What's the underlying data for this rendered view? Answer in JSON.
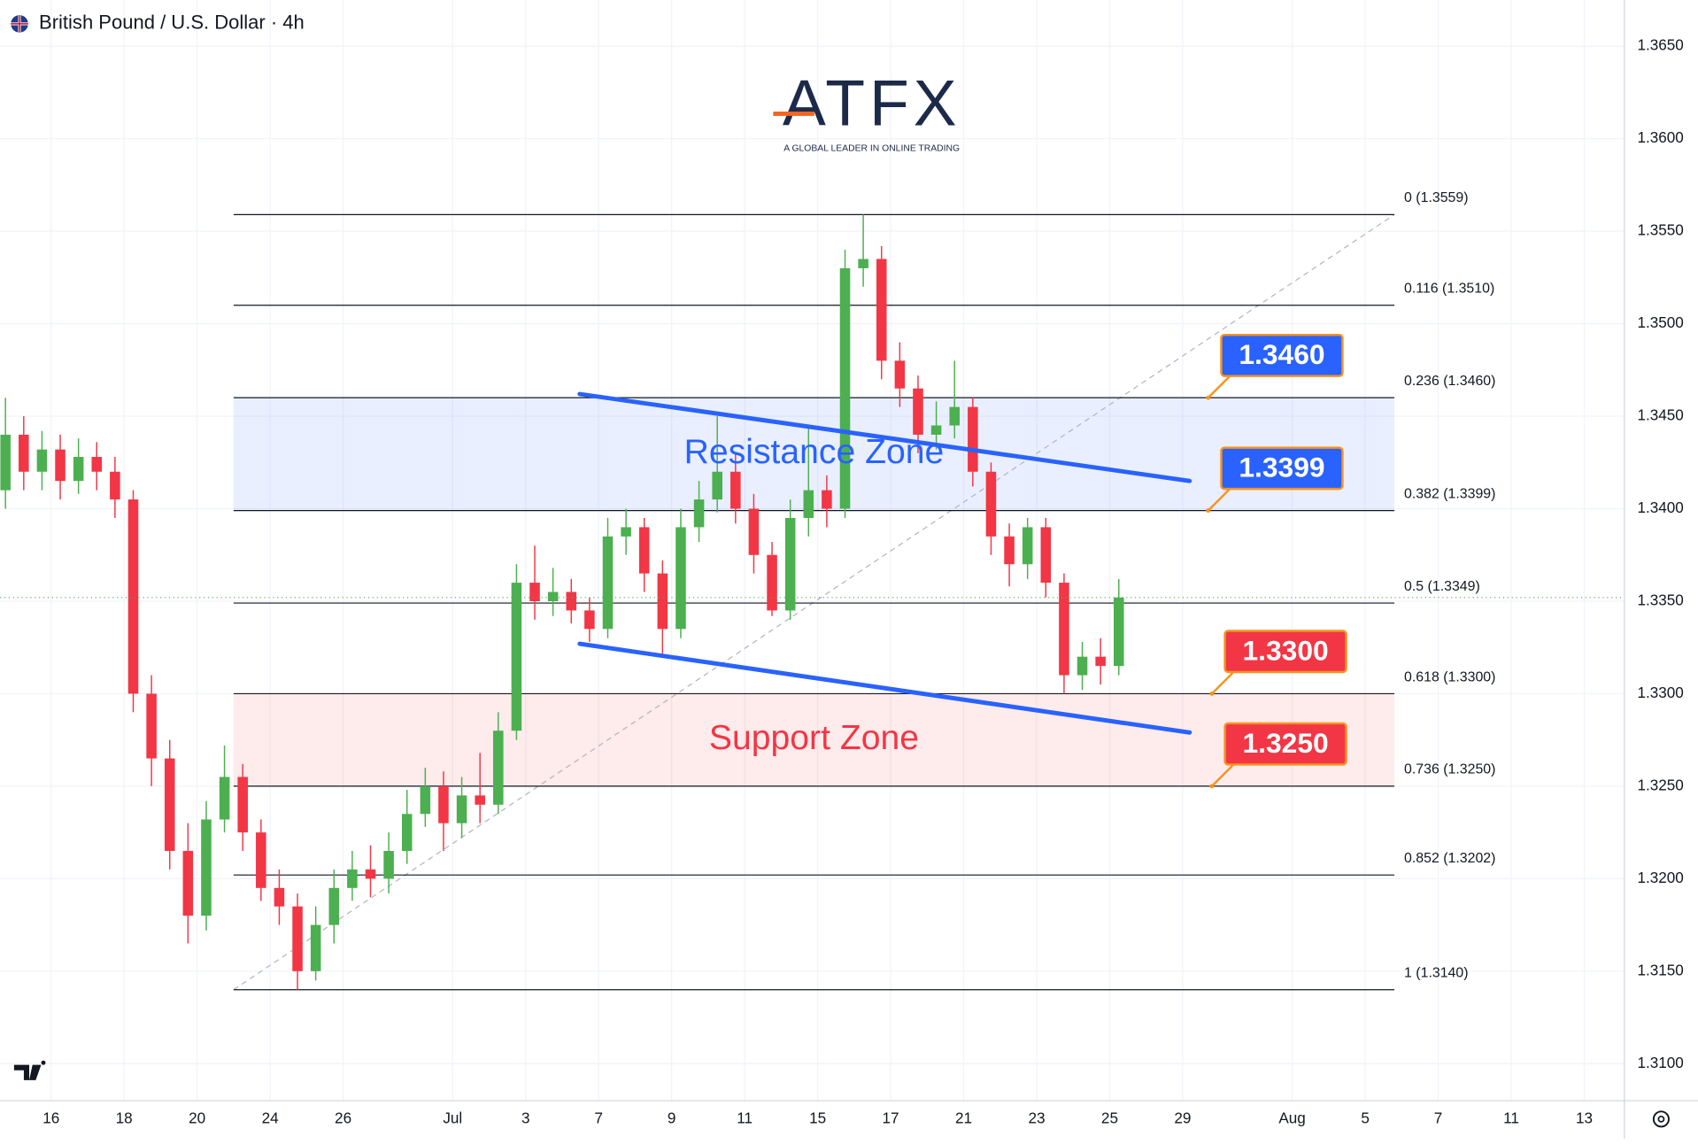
{
  "chart_data": {
    "type": "candlestick",
    "title": "British Pound / U.S. Dollar · 4h",
    "logo": {
      "name": "ATFX",
      "tagline": "A GLOBAL LEADER IN ONLINE TRADING"
    },
    "up_color": "#4caf50",
    "down_color": "#f23645",
    "x": [
      -1.25,
      -0.75,
      -0.25,
      0.25,
      0.75,
      1.25,
      1.75,
      2.25,
      2.75,
      3.25,
      3.75,
      4.25,
      4.75,
      5.25,
      5.75,
      6.25,
      6.75,
      7.25,
      7.75,
      8.25,
      8.75,
      9.25,
      9.75,
      10.25,
      10.75,
      11.25,
      11.75,
      12.25,
      12.75,
      13.25,
      13.75,
      14.25,
      14.75,
      15.25,
      15.75,
      16.25,
      16.75,
      17.25,
      17.75,
      18.25,
      18.75,
      19.25,
      19.75,
      20.25,
      20.75,
      21.25,
      21.75,
      22.25,
      22.75,
      23.25,
      23.75,
      24.25,
      24.75,
      25.25,
      25.75,
      26.25,
      26.75,
      27.25,
      27.75,
      28.25,
      28.75,
      29.25
    ],
    "open": [
      1.341,
      1.344,
      1.342,
      1.3432,
      1.3415,
      1.3428,
      1.342,
      1.3405,
      1.33,
      1.3265,
      1.3215,
      1.318,
      1.3232,
      1.3255,
      1.3225,
      1.3195,
      1.3185,
      1.315,
      1.3175,
      1.3195,
      1.3205,
      1.32,
      1.3215,
      1.3235,
      1.325,
      1.323,
      1.3245,
      1.324,
      1.328,
      1.336,
      1.335,
      1.3355,
      1.3345,
      1.3335,
      1.3385,
      1.339,
      1.3365,
      1.3335,
      1.339,
      1.3405,
      1.342,
      1.34,
      1.3375,
      1.3345,
      1.3395,
      1.341,
      1.34,
      1.353,
      1.3535,
      1.348,
      1.3465,
      1.344,
      1.3445,
      1.3455,
      1.342,
      1.3385,
      1.337,
      1.339,
      1.336,
      1.331,
      1.332,
      1.3315
    ],
    "high": [
      1.346,
      1.345,
      1.3442,
      1.344,
      1.3438,
      1.3436,
      1.3428,
      1.341,
      1.331,
      1.3275,
      1.323,
      1.3242,
      1.3272,
      1.3262,
      1.3232,
      1.3205,
      1.3192,
      1.3185,
      1.3205,
      1.3215,
      1.3218,
      1.3225,
      1.3248,
      1.326,
      1.3258,
      1.3255,
      1.3268,
      1.329,
      1.337,
      1.338,
      1.3368,
      1.3362,
      1.3352,
      1.3395,
      1.34,
      1.3395,
      1.3372,
      1.34,
      1.3415,
      1.345,
      1.343,
      1.3408,
      1.3382,
      1.3405,
      1.3445,
      1.3418,
      1.354,
      1.3559,
      1.3542,
      1.349,
      1.3472,
      1.3458,
      1.348,
      1.346,
      1.3425,
      1.3392,
      1.3395,
      1.3395,
      1.3365,
      1.3328,
      1.333,
      1.3362
    ],
    "low": [
      1.34,
      1.341,
      1.341,
      1.3405,
      1.3408,
      1.341,
      1.3395,
      1.329,
      1.325,
      1.3205,
      1.3165,
      1.3172,
      1.3225,
      1.3215,
      1.3188,
      1.3175,
      1.314,
      1.3145,
      1.3165,
      1.3188,
      1.319,
      1.3192,
      1.3208,
      1.3228,
      1.3215,
      1.3222,
      1.323,
      1.3235,
      1.3275,
      1.334,
      1.3342,
      1.3338,
      1.3328,
      1.333,
      1.3375,
      1.3355,
      1.332,
      1.333,
      1.3382,
      1.3398,
      1.3392,
      1.3365,
      1.3342,
      1.334,
      1.3385,
      1.339,
      1.3395,
      1.352,
      1.347,
      1.3455,
      1.343,
      1.3432,
      1.3438,
      1.3412,
      1.3375,
      1.3358,
      1.3362,
      1.3352,
      1.33,
      1.3302,
      1.3305,
      1.331
    ],
    "close": [
      1.344,
      1.342,
      1.3432,
      1.3415,
      1.3428,
      1.342,
      1.3405,
      1.33,
      1.3265,
      1.3215,
      1.318,
      1.3232,
      1.3255,
      1.3225,
      1.3195,
      1.3185,
      1.315,
      1.3175,
      1.3195,
      1.3205,
      1.32,
      1.3215,
      1.3235,
      1.325,
      1.323,
      1.3245,
      1.324,
      1.328,
      1.336,
      1.335,
      1.3355,
      1.3345,
      1.3335,
      1.3385,
      1.339,
      1.3365,
      1.3335,
      1.339,
      1.3405,
      1.342,
      1.34,
      1.3375,
      1.3345,
      1.3395,
      1.341,
      1.34,
      1.353,
      1.3535,
      1.348,
      1.3465,
      1.344,
      1.3445,
      1.3455,
      1.342,
      1.3385,
      1.337,
      1.339,
      1.336,
      1.331,
      1.332,
      1.3315,
      1.3352
    ],
    "xlim": [
      -1.4,
      43.1
    ],
    "ylim": [
      1.308,
      1.3675
    ],
    "grid": true,
    "xticks": [
      {
        "value": 0,
        "label": "16"
      },
      {
        "value": 2,
        "label": "18"
      },
      {
        "value": 4,
        "label": "20"
      },
      {
        "value": 6,
        "label": "24"
      },
      {
        "value": 8,
        "label": "26"
      },
      {
        "value": 11,
        "label": "Jul"
      },
      {
        "value": 13,
        "label": "3"
      },
      {
        "value": 15,
        "label": "7"
      },
      {
        "value": 17,
        "label": "9"
      },
      {
        "value": 19,
        "label": "11"
      },
      {
        "value": 21,
        "label": "15"
      },
      {
        "value": 23,
        "label": "17"
      },
      {
        "value": 25,
        "label": "21"
      },
      {
        "value": 27,
        "label": "23"
      },
      {
        "value": 29,
        "label": "25"
      },
      {
        "value": 31,
        "label": "29"
      },
      {
        "value": 34,
        "label": "Aug"
      },
      {
        "value": 36,
        "label": "5"
      },
      {
        "value": 38,
        "label": "7"
      },
      {
        "value": 40,
        "label": "11"
      },
      {
        "value": 42,
        "label": "13"
      }
    ],
    "yticks": [
      {
        "value": 1.31,
        "label": "1.3100"
      },
      {
        "value": 1.315,
        "label": "1.3150"
      },
      {
        "value": 1.32,
        "label": "1.3200"
      },
      {
        "value": 1.325,
        "label": "1.3250"
      },
      {
        "value": 1.33,
        "label": "1.3300"
      },
      {
        "value": 1.335,
        "label": "1.3350"
      },
      {
        "value": 1.34,
        "label": "1.3400"
      },
      {
        "value": 1.345,
        "label": "1.3450"
      },
      {
        "value": 1.35,
        "label": "1.3500"
      },
      {
        "value": 1.355,
        "label": "1.3550"
      },
      {
        "value": 1.36,
        "label": "1.3600"
      },
      {
        "value": 1.365,
        "label": "1.3650"
      }
    ],
    "fib": {
      "x": [
        5.0,
        36.8
      ],
      "trend": [
        1.314,
        1.3559
      ],
      "levels": [
        {
          "value": 1.3559,
          "label": "0 (1.3559)"
        },
        {
          "value": 1.351,
          "label": "0.116 (1.3510)"
        },
        {
          "value": 1.346,
          "label": "0.236 (1.3460)"
        },
        {
          "value": 1.3399,
          "label": "0.382 (1.3399)"
        },
        {
          "value": 1.3349,
          "label": "0.5 (1.3349)"
        },
        {
          "value": 1.33,
          "label": "0.618 (1.3300)"
        },
        {
          "value": 1.325,
          "label": "0.736 (1.3250)"
        },
        {
          "value": 1.3202,
          "label": "0.852 (1.3202)"
        },
        {
          "value": 1.314,
          "label": "1 (1.3140)"
        }
      ]
    },
    "zones": [
      {
        "name": "Resistance Zone",
        "low": 1.3399,
        "high": 1.346,
        "x": [
          5.0,
          36.8
        ],
        "color": "#2962ff"
      },
      {
        "name": "Support Zone",
        "low": 1.325,
        "high": 1.33,
        "x": [
          5.0,
          36.8
        ],
        "color": "#f23645"
      }
    ],
    "channel": {
      "color": "#2962ff",
      "lines": [
        {
          "x": [
            14.48,
            31.19
          ],
          "y": [
            1.3462,
            1.3415
          ]
        },
        {
          "x": [
            14.48,
            31.19
          ],
          "y": [
            1.3327,
            1.3279
          ]
        }
      ]
    },
    "callouts": [
      {
        "value": 1.346,
        "label": "1.3460",
        "x": 31.7,
        "color": "#2962ff"
      },
      {
        "value": 1.3399,
        "label": "1.3399",
        "x": 31.7,
        "color": "#2962ff"
      },
      {
        "value": 1.33,
        "label": "1.3300",
        "x": 31.8,
        "color": "#f23645"
      },
      {
        "value": 1.325,
        "label": "1.3250",
        "x": 31.8,
        "color": "#f23645"
      }
    ]
  }
}
